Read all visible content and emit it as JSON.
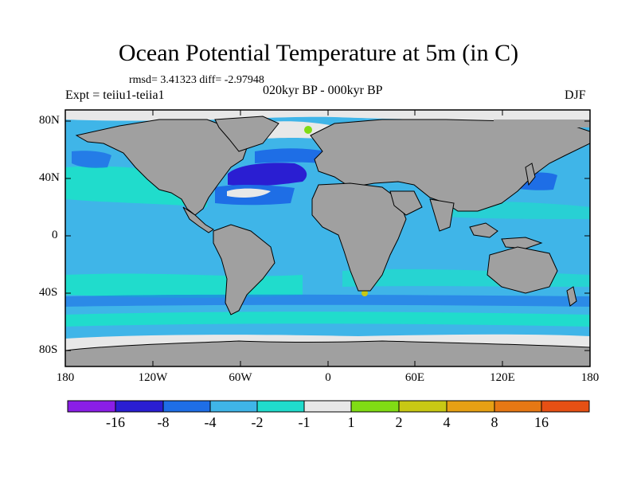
{
  "title": "Ocean Potential Temperature at 5m (in C)",
  "stats_text": "rmsd= 3.41323 diff= -2.97948",
  "experiment_text": "Expt = teiiu1-teiia1",
  "period_text": "020kyr BP - 000kyr BP",
  "season_text": "DJF",
  "map": {
    "projection": "cylindrical-equidistant",
    "lon_range": [
      -180,
      180
    ],
    "lat_range": [
      -90,
      90
    ],
    "land_color": "#a0a0a0",
    "background_color": "#3fb5e8",
    "lat_labels": [
      "80N",
      "40N",
      "0",
      "40S",
      "80S"
    ],
    "lon_labels": [
      "180",
      "120W",
      "60W",
      "0",
      "60E",
      "120E",
      "180"
    ]
  },
  "colorbar": {
    "colors": [
      "#8a1ee6",
      "#2a1ed2",
      "#1e6ee6",
      "#3fb5e8",
      "#20dccc",
      "#e8e8e8",
      "#80dc14",
      "#c8c814",
      "#e6a014",
      "#e67814",
      "#e65014"
    ],
    "labels": [
      "-16",
      "-8",
      "-4",
      "-2",
      "-1",
      "1",
      "2",
      "4",
      "8",
      "16"
    ]
  }
}
